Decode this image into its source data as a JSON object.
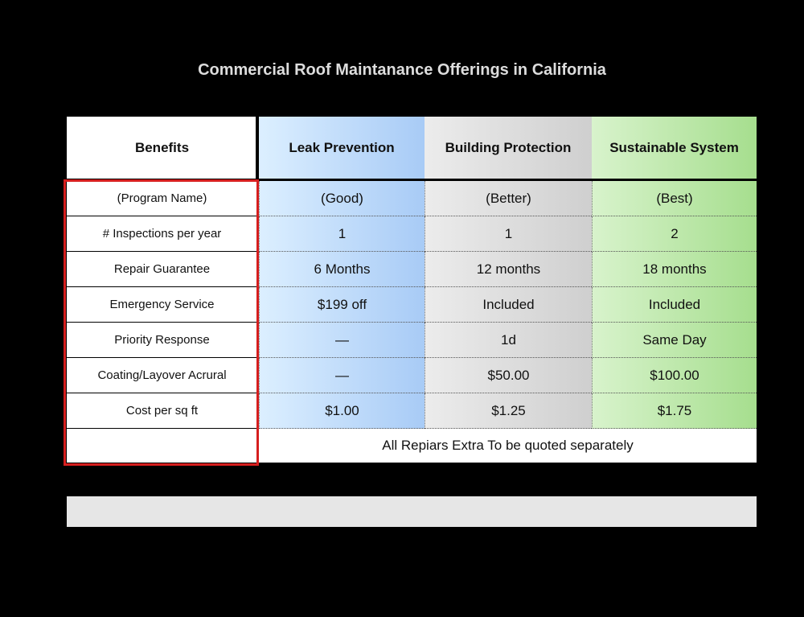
{
  "title": "Commercial Roof Maintanance Offerings in  California",
  "table": {
    "header": [
      "Benefits",
      "Leak Prevention",
      "Building Protection",
      "Sustainable System"
    ],
    "rows": [
      [
        "(Program Name)",
        "(Good)",
        "(Better)",
        "(Best)"
      ],
      [
        "# Inspections per year",
        "1",
        "1",
        "2"
      ],
      [
        "Repair Guarantee",
        "6 Months",
        "12 months",
        "18 months"
      ],
      [
        "Emergency Service",
        "$199 off",
        "Included",
        "Included"
      ],
      [
        "Priority Response",
        "—",
        "1d",
        "Same Day"
      ],
      [
        "Coating/Layover Acrural",
        "—",
        "$50.00",
        "$100.00"
      ],
      [
        "Cost per sq ft",
        "$1.00",
        "$1.25",
        "$1.75"
      ]
    ],
    "note": "All Repiars Extra  To be quoted separately"
  }
}
